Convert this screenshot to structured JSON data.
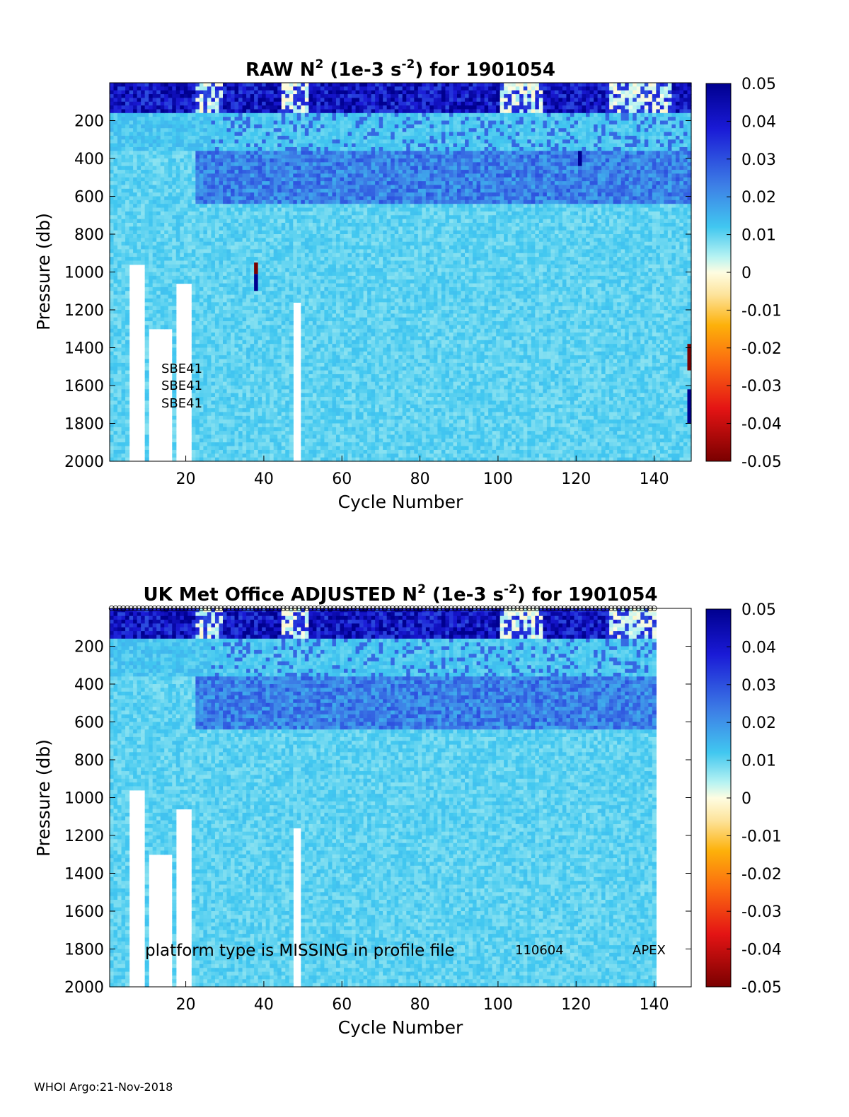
{
  "chart_data": [
    {
      "type": "heatmap",
      "title_main": "RAW N",
      "title_sup": "2",
      "title_units_open": " (1e-3 s",
      "title_units_sup": "-2",
      "title_tail": ") for 1901054",
      "xlabel": "Cycle Number",
      "ylabel": "Pressure (db)",
      "xlim": [
        1,
        149
      ],
      "ylim": [
        0,
        2000
      ],
      "y_reversed": true,
      "xticks": [
        20,
        40,
        60,
        80,
        100,
        120,
        140
      ],
      "yticks": [
        200,
        400,
        600,
        800,
        1000,
        1200,
        1400,
        1600,
        1800,
        2000
      ],
      "last_cycle": 149,
      "colorbar": {
        "range": [
          -0.05,
          0.05
        ],
        "colormap": "jet-like diverging",
        "ticks": [
          "0.05",
          "0.04",
          "0.03",
          "0.02",
          "0.01",
          "0",
          "-0.01",
          "-0.02",
          "-0.03",
          "-0.04",
          "-0.05"
        ]
      },
      "annotations": [
        "SBE41",
        "SBE41",
        "SBE41"
      ],
      "profile_markers": false,
      "field_description": {
        "surface_0_150db": "strongly positive (0.04-0.05), patchy near-zero between",
        "pycnocline_400_600db": "0.02-0.03",
        "deep_below_700db": "about 0.008-0.012"
      }
    },
    {
      "type": "heatmap",
      "title_main": "UK Met Office  ADJUSTED N",
      "title_sup": "2",
      "title_units_open": " (1e-3 s",
      "title_units_sup": "-2",
      "title_tail": ") for 1901054",
      "xlabel": "Cycle Number",
      "ylabel": "Pressure (db)",
      "xlim": [
        1,
        149
      ],
      "ylim": [
        0,
        2000
      ],
      "y_reversed": true,
      "xticks": [
        20,
        40,
        60,
        80,
        100,
        120,
        140
      ],
      "yticks": [
        200,
        400,
        600,
        800,
        1000,
        1200,
        1400,
        1600,
        1800,
        2000
      ],
      "last_cycle": 140,
      "colorbar": {
        "range": [
          -0.05,
          0.05
        ],
        "colormap": "jet-like diverging",
        "ticks": [
          "0.05",
          "0.04",
          "0.03",
          "0.02",
          "0.01",
          "0",
          "-0.01",
          "-0.02",
          "-0.03",
          "-0.04",
          "-0.05"
        ]
      },
      "annotations": [
        "platform type is MISSING in profile file",
        "110604",
        "APEX"
      ],
      "profile_markers": true
    }
  ],
  "footer": "WHOI Argo:21-Nov-2018"
}
